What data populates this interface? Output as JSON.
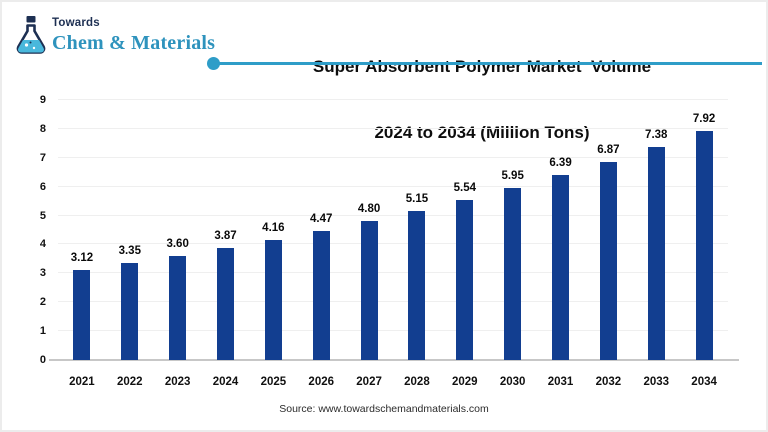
{
  "logo": {
    "brand_top": "Towards",
    "brand_bottom": "Chem & Materials"
  },
  "title": {
    "line1": "Super Absorbent Polymer Market  Volume",
    "line2": "2024 to 2034 (Million Tons)"
  },
  "source": "Source: www.towardschemandmaterials.com",
  "colors": {
    "bar": "#123e90",
    "accent_line": "#2e9dc8",
    "brand_navy": "#1d2f52",
    "brand_teal": "#2e93bd",
    "liquid_teal": "#49b8dc"
  },
  "chart_data": {
    "type": "bar",
    "title": "Super Absorbent Polymer Market Volume 2024 to 2034 (Million Tons)",
    "categories": [
      "2021",
      "2022",
      "2023",
      "2024",
      "2025",
      "2026",
      "2027",
      "2028",
      "2029",
      "2030",
      "2031",
      "2032",
      "2033",
      "2034"
    ],
    "values": [
      3.12,
      3.35,
      3.6,
      3.87,
      4.16,
      4.47,
      4.8,
      5.15,
      5.54,
      5.95,
      6.39,
      6.87,
      7.38,
      7.92
    ],
    "value_labels": [
      "3.12",
      "3.35",
      "3.60",
      "3.87",
      "4.16",
      "4.47",
      "4.80",
      "5.15",
      "5.54",
      "5.95",
      "6.39",
      "6.87",
      "7.38",
      "7.92"
    ],
    "xlabel": "",
    "ylabel": "",
    "ylim": [
      0,
      9
    ],
    "yticks": [
      0,
      1,
      2,
      3,
      4,
      5,
      6,
      7,
      8,
      9
    ],
    "grid": true,
    "legend": "none",
    "bar_color": "#123e90"
  }
}
